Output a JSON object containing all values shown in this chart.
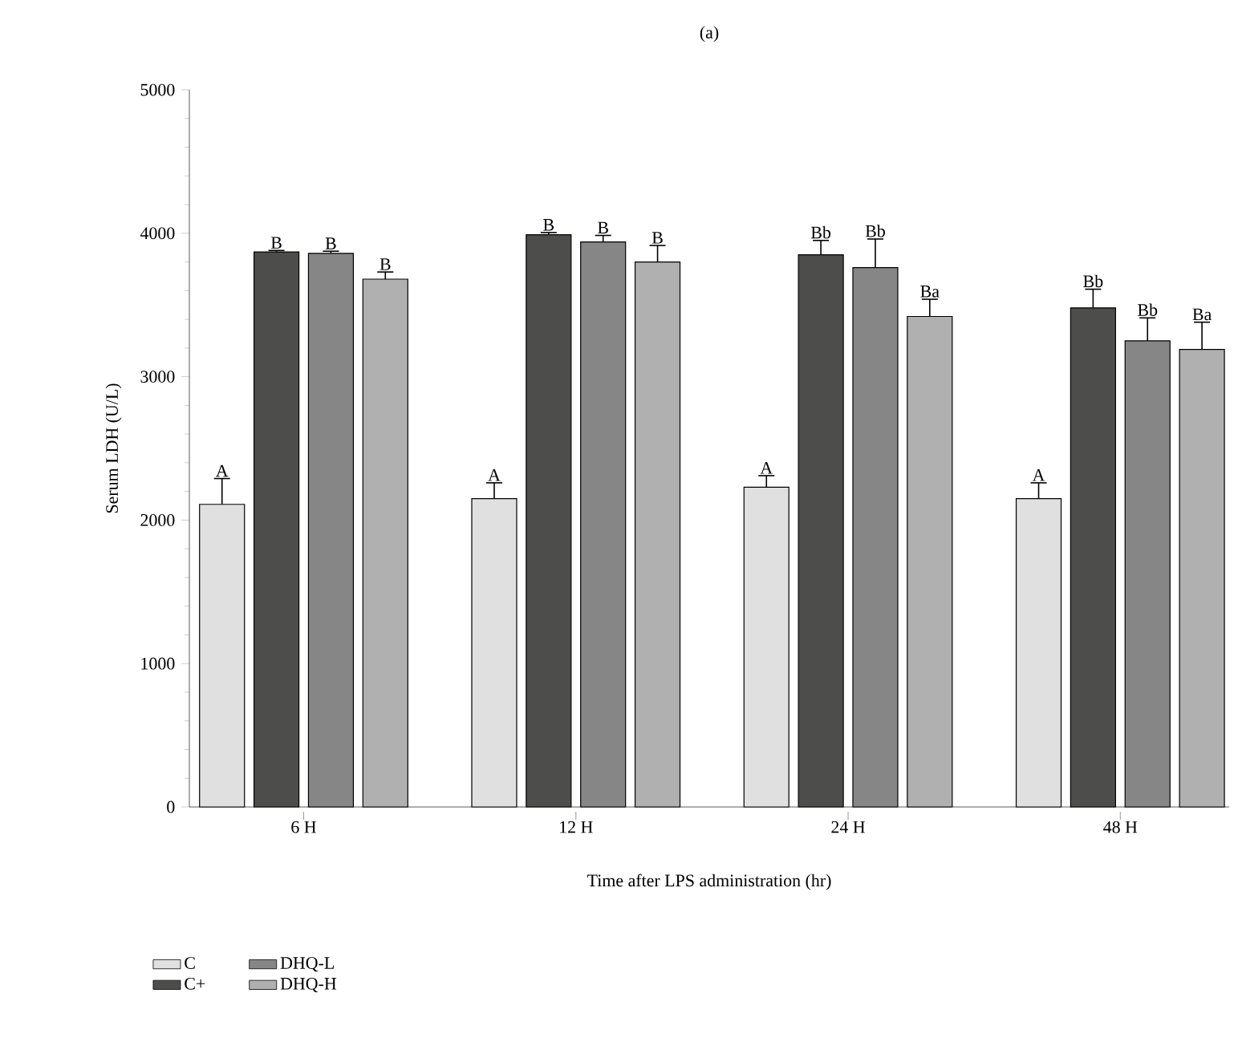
{
  "chart_data": {
    "type": "bar",
    "title": "(a)",
    "xlabel": "Time after LPS administration (hr)",
    "ylabel": "Serum LDH (U/L)",
    "categories": [
      "6 H",
      "12 H",
      "24 H",
      "48 H"
    ],
    "series": [
      {
        "name": "C",
        "color": "#dfe0df",
        "values": [
          2110,
          2150,
          2230,
          2150
        ],
        "errors": [
          180,
          110,
          80,
          110
        ],
        "value_labels": [
          "A",
          "A",
          "A",
          "A"
        ]
      },
      {
        "name": "C+",
        "color": "#4d4d4b",
        "values": [
          3870,
          3990,
          3850,
          3480
        ],
        "errors": [
          10,
          15,
          100,
          130
        ],
        "value_labels": [
          "B",
          "B",
          "Bb",
          "Bb"
        ]
      },
      {
        "name": "DHQ-L",
        "color": "#868686",
        "values": [
          3860,
          3940,
          3760,
          3250
        ],
        "errors": [
          15,
          45,
          200,
          160
        ],
        "value_labels": [
          "B",
          "B",
          "Bb",
          "Bb"
        ]
      },
      {
        "name": "DHQ-H",
        "color": "#b0b0b0",
        "values": [
          3680,
          3800,
          3420,
          3190
        ],
        "errors": [
          50,
          115,
          120,
          190
        ],
        "value_labels": [
          "B",
          "B",
          "Ba",
          "Ba"
        ]
      }
    ],
    "ylim": [
      0,
      5000
    ],
    "yticks": [
      0,
      1000,
      2000,
      3000,
      4000,
      5000
    ],
    "grid": false,
    "legend": "bottom left"
  }
}
